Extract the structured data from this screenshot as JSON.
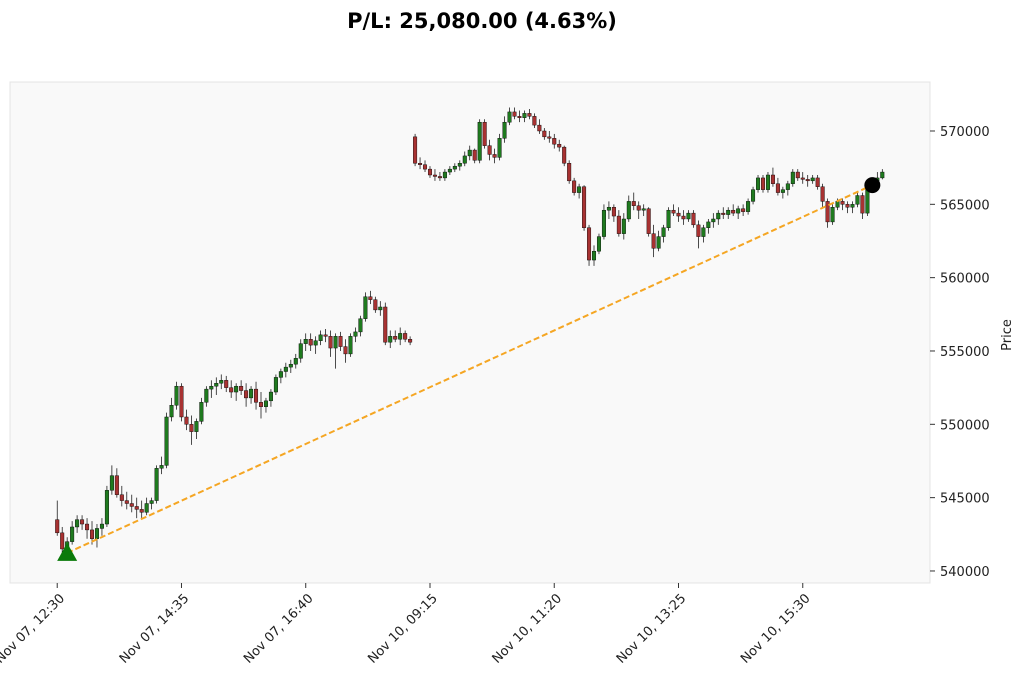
{
  "chart_data": {
    "type": "candlestick",
    "title": "P/L: 25,080.00 (4.63%)",
    "y_label": "Price",
    "up_color": "#1f7a1f",
    "down_color": "#a83232",
    "line_color": "#f5a623",
    "entry_color": "#0a7a0a",
    "exit_color": "#000000",
    "xlim": [
      -9.5,
      175.6
    ],
    "ylim": [
      539180,
      573340
    ],
    "xticks": [
      {
        "value": 0,
        "label": "Nov 07, 12:30"
      },
      {
        "value": 25,
        "label": "Nov 07, 14:35"
      },
      {
        "value": 50,
        "label": "Nov 07, 16:40"
      },
      {
        "value": 75,
        "label": "Nov 10, 09:15"
      },
      {
        "value": 100,
        "label": "Nov 10, 11:20"
      },
      {
        "value": 125,
        "label": "Nov 10, 13:25"
      },
      {
        "value": 150,
        "label": "Nov 10, 15:30"
      }
    ],
    "yticks": [
      540000,
      545000,
      550000,
      555000,
      560000,
      565000,
      570000
    ],
    "entry": [
      2,
      541230
    ],
    "exit": [
      164,
      566310
    ],
    "ohlc": [
      [
        543500,
        544800,
        542400,
        542600
      ],
      [
        542600,
        543000,
        540800,
        541500
      ],
      [
        541500,
        542300,
        541000,
        542000
      ],
      [
        542000,
        543400,
        541800,
        543000
      ],
      [
        543000,
        543800,
        542600,
        543500
      ],
      [
        543500,
        543800,
        542800,
        543200
      ],
      [
        543200,
        543600,
        542200,
        542800
      ],
      [
        542800,
        543400,
        541800,
        542200
      ],
      [
        542200,
        543200,
        541600,
        542900
      ],
      [
        542900,
        543600,
        542400,
        543200
      ],
      [
        543200,
        545800,
        543000,
        545500
      ],
      [
        545500,
        547200,
        545200,
        546500
      ],
      [
        546500,
        547000,
        545000,
        545200
      ],
      [
        545200,
        545800,
        544400,
        544800
      ],
      [
        544800,
        545400,
        544200,
        544600
      ],
      [
        544600,
        545200,
        544000,
        544400
      ],
      [
        544400,
        545000,
        543600,
        544200
      ],
      [
        544200,
        544800,
        543600,
        544000
      ],
      [
        544000,
        545000,
        543800,
        544600
      ],
      [
        544600,
        545000,
        544200,
        544800
      ],
      [
        544800,
        547200,
        544600,
        547000
      ],
      [
        547000,
        547800,
        546600,
        547200
      ],
      [
        547200,
        550800,
        547000,
        550500
      ],
      [
        550500,
        551800,
        550200,
        551300
      ],
      [
        551300,
        552900,
        551000,
        552600
      ],
      [
        552600,
        552800,
        550200,
        550500
      ],
      [
        550500,
        551000,
        549600,
        550000
      ],
      [
        550000,
        550600,
        548600,
        549500
      ],
      [
        549500,
        550400,
        549000,
        550200
      ],
      [
        550200,
        551800,
        550000,
        551500
      ],
      [
        551500,
        552600,
        551200,
        552400
      ],
      [
        552400,
        553000,
        551800,
        552600
      ],
      [
        552600,
        553200,
        552000,
        552800
      ],
      [
        552800,
        553400,
        552400,
        553000
      ],
      [
        553000,
        553300,
        552200,
        552500
      ],
      [
        552500,
        553000,
        551800,
        552200
      ],
      [
        552200,
        552800,
        551600,
        552600
      ],
      [
        552600,
        553000,
        552000,
        552300
      ],
      [
        552300,
        552800,
        551200,
        551800
      ],
      [
        551800,
        552600,
        551400,
        552400
      ],
      [
        552400,
        552900,
        551000,
        551500
      ],
      [
        551500,
        552200,
        550400,
        551200
      ],
      [
        551200,
        551800,
        550800,
        551600
      ],
      [
        551600,
        552400,
        551200,
        552200
      ],
      [
        552200,
        553400,
        552000,
        553200
      ],
      [
        553200,
        553800,
        552800,
        553600
      ],
      [
        553600,
        554200,
        553200,
        553900
      ],
      [
        553900,
        554400,
        553500,
        554100
      ],
      [
        554100,
        554800,
        553800,
        554500
      ],
      [
        554500,
        555800,
        554200,
        555500
      ],
      [
        555500,
        556200,
        555000,
        555800
      ],
      [
        555800,
        556200,
        555000,
        555400
      ],
      [
        555400,
        556000,
        554800,
        555700
      ],
      [
        555700,
        556400,
        555400,
        556100
      ],
      [
        556100,
        556500,
        555600,
        556000
      ],
      [
        556000,
        556400,
        554600,
        555200
      ],
      [
        555200,
        556200,
        553800,
        556000
      ],
      [
        556000,
        556300,
        555000,
        555300
      ],
      [
        555300,
        555800,
        554200,
        554800
      ],
      [
        554800,
        556200,
        554600,
        556000
      ],
      [
        556000,
        556600,
        555600,
        556300
      ],
      [
        556300,
        557400,
        556000,
        557200
      ],
      [
        557200,
        559000,
        557000,
        558700
      ],
      [
        558700,
        559100,
        558200,
        558500
      ],
      [
        558500,
        558700,
        557600,
        557800
      ],
      [
        557800,
        558400,
        557400,
        558000
      ],
      [
        558000,
        558300,
        555400,
        555600
      ],
      [
        555600,
        556400,
        555200,
        556000
      ],
      [
        556000,
        556400,
        555600,
        555800
      ],
      [
        555800,
        556600,
        555400,
        556200
      ],
      [
        556200,
        556400,
        555600,
        555800
      ],
      [
        555800,
        556000,
        555400,
        555600
      ],
      [
        569600,
        569800,
        567600,
        567800
      ],
      [
        567800,
        568200,
        567400,
        567700
      ],
      [
        567700,
        568000,
        567200,
        567400
      ],
      [
        567400,
        567600,
        566800,
        567000
      ],
      [
        567000,
        567400,
        566600,
        566900
      ],
      [
        566900,
        567200,
        566600,
        566800
      ],
      [
        566800,
        567400,
        566600,
        567200
      ],
      [
        567200,
        567600,
        567000,
        567400
      ],
      [
        567400,
        567800,
        567200,
        567600
      ],
      [
        567600,
        568000,
        567300,
        567800
      ],
      [
        567800,
        568600,
        567600,
        568300
      ],
      [
        568300,
        569000,
        568000,
        568700
      ],
      [
        568700,
        568800,
        567800,
        568000
      ],
      [
        568000,
        570800,
        567800,
        570600
      ],
      [
        570600,
        570800,
        568800,
        569000
      ],
      [
        569000,
        569400,
        568000,
        568400
      ],
      [
        568400,
        568800,
        567800,
        568200
      ],
      [
        568200,
        569800,
        568000,
        569500
      ],
      [
        569500,
        571000,
        569200,
        570600
      ],
      [
        570600,
        571600,
        570400,
        571300
      ],
      [
        571300,
        571600,
        570800,
        571000
      ],
      [
        571000,
        571400,
        570600,
        570900
      ],
      [
        570900,
        571400,
        570600,
        571200
      ],
      [
        571200,
        571500,
        570800,
        571000
      ],
      [
        571000,
        571200,
        570200,
        570400
      ],
      [
        570400,
        570800,
        569800,
        570000
      ],
      [
        570000,
        570200,
        569400,
        569600
      ],
      [
        569600,
        570000,
        569200,
        569500
      ],
      [
        569500,
        569800,
        568800,
        569100
      ],
      [
        569100,
        569400,
        568600,
        568900
      ],
      [
        568900,
        569000,
        567600,
        567800
      ],
      [
        567800,
        568000,
        566400,
        566600
      ],
      [
        566600,
        566800,
        565600,
        565800
      ],
      [
        565800,
        566400,
        565400,
        566200
      ],
      [
        566200,
        566300,
        563200,
        563400
      ],
      [
        563400,
        563600,
        560800,
        561200
      ],
      [
        561200,
        562200,
        560800,
        561800
      ],
      [
        561800,
        563000,
        561600,
        562800
      ],
      [
        562800,
        565000,
        562600,
        564600
      ],
      [
        564600,
        565200,
        564000,
        564800
      ],
      [
        564800,
        565000,
        563800,
        564200
      ],
      [
        564200,
        564600,
        562800,
        563000
      ],
      [
        563000,
        564400,
        562600,
        564000
      ],
      [
        564000,
        565600,
        563800,
        565200
      ],
      [
        565200,
        565800,
        564600,
        564900
      ],
      [
        564900,
        565200,
        564000,
        564600
      ],
      [
        564600,
        565000,
        564200,
        564700
      ],
      [
        564700,
        564800,
        562800,
        563000
      ],
      [
        563000,
        563600,
        561400,
        562000
      ],
      [
        562000,
        563200,
        561800,
        562800
      ],
      [
        562800,
        563600,
        562400,
        563400
      ],
      [
        563400,
        564800,
        563200,
        564600
      ],
      [
        564600,
        565000,
        564200,
        564400
      ],
      [
        564400,
        564800,
        563800,
        564200
      ],
      [
        564200,
        564600,
        563600,
        564000
      ],
      [
        564000,
        564600,
        563800,
        564400
      ],
      [
        564400,
        564600,
        563400,
        563600
      ],
      [
        563600,
        563900,
        562000,
        562800
      ],
      [
        562800,
        563600,
        562400,
        563400
      ],
      [
        563400,
        564000,
        563000,
        563800
      ],
      [
        563800,
        564400,
        563400,
        564000
      ],
      [
        564000,
        564600,
        563600,
        564400
      ],
      [
        564400,
        564800,
        564000,
        564300
      ],
      [
        564300,
        564800,
        564000,
        564600
      ],
      [
        564600,
        565000,
        564200,
        564400
      ],
      [
        564400,
        564900,
        564000,
        564700
      ],
      [
        564700,
        565000,
        564200,
        564500
      ],
      [
        564500,
        565400,
        564300,
        565200
      ],
      [
        565200,
        566200,
        565000,
        566000
      ],
      [
        566000,
        567000,
        565800,
        566800
      ],
      [
        566800,
        567000,
        565800,
        566000
      ],
      [
        566000,
        567200,
        565800,
        567000
      ],
      [
        567000,
        567500,
        566200,
        566400
      ],
      [
        566400,
        566800,
        565600,
        565800
      ],
      [
        565800,
        566200,
        565400,
        566000
      ],
      [
        566000,
        566600,
        565600,
        566400
      ],
      [
        566400,
        567400,
        566200,
        567200
      ],
      [
        567200,
        567400,
        566600,
        566800
      ],
      [
        566800,
        567200,
        566400,
        566700
      ],
      [
        566700,
        567000,
        566200,
        566600
      ],
      [
        566600,
        567000,
        566400,
        566800
      ],
      [
        566800,
        567000,
        566000,
        566200
      ],
      [
        566200,
        566400,
        564800,
        565200
      ],
      [
        565200,
        565400,
        563400,
        563800
      ],
      [
        563800,
        565000,
        563600,
        564800
      ],
      [
        564800,
        565400,
        564600,
        565200
      ],
      [
        565200,
        565400,
        564600,
        565000
      ],
      [
        565000,
        565200,
        564400,
        564800
      ],
      [
        564800,
        565200,
        564400,
        565000
      ],
      [
        565000,
        565800,
        564800,
        565600
      ],
      [
        565600,
        565800,
        564000,
        564400
      ],
      [
        564400,
        566400,
        564200,
        566200
      ],
      [
        566200,
        566800,
        566000,
        566600
      ],
      [
        566600,
        567200,
        566400,
        566800
      ],
      [
        566800,
        567400,
        566700,
        567200
      ]
    ]
  }
}
